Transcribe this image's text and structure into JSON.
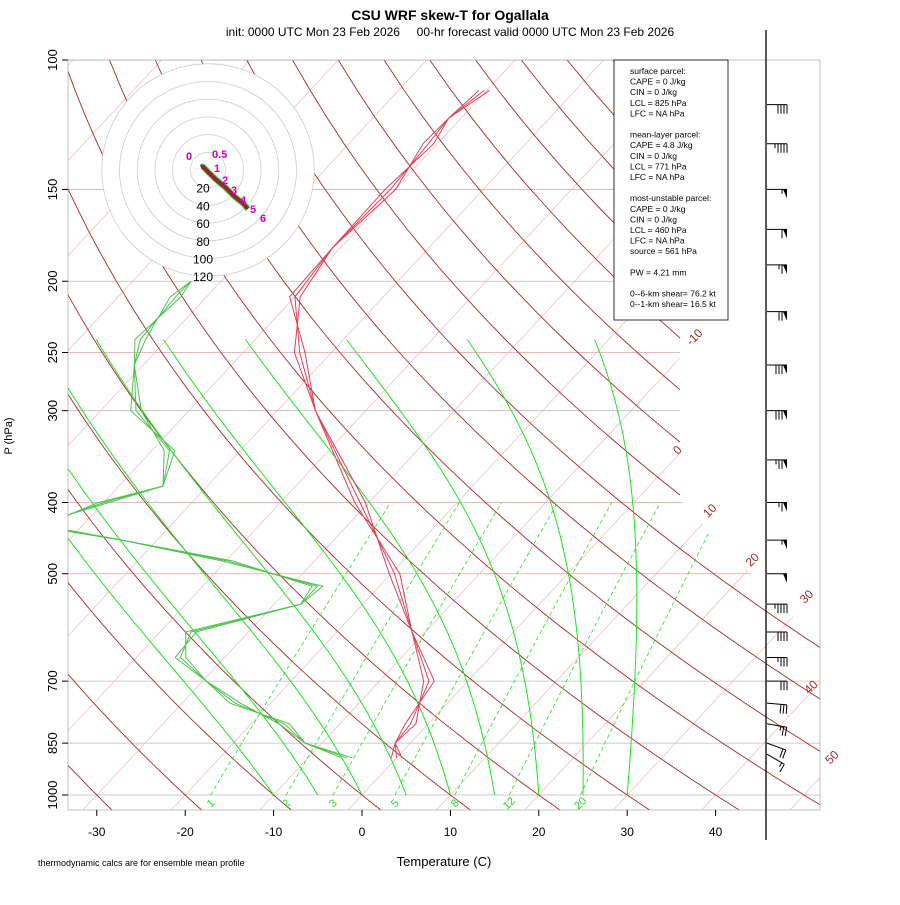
{
  "chart_data": {
    "type": "line",
    "title": "CSU WRF skew-T for Ogallala",
    "subtitle": "init: 0000 UTC Mon 23 Feb 2026     00-hr forecast valid 0000 UTC Mon 23 Feb 2026",
    "xlabel": "Temperature (C)",
    "ylabel": "P (hPa)",
    "footnote": "thermodynamic calcs are for ensemble mean profile",
    "xlim": [
      -33,
      45
    ],
    "ylim": [
      1000,
      100
    ],
    "x_ticks": [
      "-30",
      "-20",
      "-10",
      "0",
      "10",
      "20",
      "30",
      "40"
    ],
    "x_tick_values": [
      -30,
      -20,
      -10,
      0,
      10,
      20,
      30,
      40
    ],
    "y_ticks": [
      "100",
      "150",
      "200",
      "250",
      "300",
      "400",
      "500",
      "700",
      "850",
      "1000"
    ],
    "y_tick_values": [
      100,
      150,
      200,
      250,
      300,
      400,
      500,
      700,
      850,
      1000
    ],
    "isotherm_labels": [
      {
        "text": "-10",
        "T": -10,
        "p": 245
      },
      {
        "text": "0",
        "T": 0,
        "p": 345
      },
      {
        "text": "10",
        "T": 10,
        "p": 420
      },
      {
        "text": "20",
        "T": 20,
        "p": 490
      },
      {
        "text": "30",
        "T": 30,
        "p": 550
      },
      {
        "text": "40",
        "T": 40,
        "p": 730
      },
      {
        "text": "50",
        "T": 50,
        "p": 910
      }
    ],
    "mixing_ratio_labels": [
      "1",
      "2",
      "3",
      "5",
      "8",
      "12",
      "20"
    ],
    "mixing_ratio_values": [
      1,
      2,
      3,
      5,
      8,
      12,
      20
    ],
    "series": [
      {
        "name": "temperature",
        "color": "#e0425a",
        "p": [
          890,
          850,
          800,
          700,
          600,
          500,
          400,
          300,
          250,
          210,
          180,
          150,
          130,
          120,
          110
        ],
        "T": [
          0.0,
          -1.7,
          -2.0,
          -4.4,
          -11.5,
          -19.6,
          -31.0,
          -45.7,
          -53.6,
          -60.0,
          -60.9,
          -60.5,
          -61.0,
          -61.4,
          -60.3
        ]
      },
      {
        "name": "dewpoint",
        "color": "#4ec24e",
        "p": [
          890,
          850,
          800,
          750,
          700,
          650,
          600,
          550,
          520,
          480,
          450,
          430,
          400,
          380,
          340,
          300,
          260,
          240,
          210,
          200
        ],
        "T": [
          -5.6,
          -11.9,
          -16.3,
          -24.0,
          -29.6,
          -35.0,
          -36.5,
          -27.0,
          -27.0,
          -40.0,
          -54.0,
          -65.0,
          -60.0,
          -55.0,
          -58.0,
          -66.0,
          -71.0,
          -73.0,
          -73.5,
          -73.4
        ]
      }
    ],
    "winds": [
      {
        "p": 880,
        "dir": 300,
        "kt": 15
      },
      {
        "p": 850,
        "dir": 290,
        "kt": 20
      },
      {
        "p": 800,
        "dir": 280,
        "kt": 25
      },
      {
        "p": 750,
        "dir": 275,
        "kt": 30
      },
      {
        "p": 700,
        "dir": 270,
        "kt": 30
      },
      {
        "p": 650,
        "dir": 270,
        "kt": 35
      },
      {
        "p": 600,
        "dir": 270,
        "kt": 40
      },
      {
        "p": 550,
        "dir": 270,
        "kt": 45
      },
      {
        "p": 500,
        "dir": 270,
        "kt": 50
      },
      {
        "p": 450,
        "dir": 270,
        "kt": 55
      },
      {
        "p": 400,
        "dir": 270,
        "kt": 65
      },
      {
        "p": 350,
        "dir": 270,
        "kt": 75
      },
      {
        "p": 300,
        "dir": 270,
        "kt": 80
      },
      {
        "p": 260,
        "dir": 270,
        "kt": 80
      },
      {
        "p": 220,
        "dir": 270,
        "kt": 70
      },
      {
        "p": 190,
        "dir": 270,
        "kt": 65
      },
      {
        "p": 170,
        "dir": 270,
        "kt": 60
      },
      {
        "p": 150,
        "dir": 270,
        "kt": 55
      },
      {
        "p": 130,
        "dir": 270,
        "kt": 45
      },
      {
        "p": 115,
        "dir": 270,
        "kt": 40
      }
    ],
    "hodograph": {
      "ring_labels": [
        "20",
        "40",
        "60",
        "80",
        "100",
        "120"
      ],
      "ring_values": [
        20,
        40,
        60,
        80,
        100,
        120
      ],
      "height_labels": [
        "0",
        "0.5",
        "1",
        "2",
        "3",
        "4",
        "5",
        "6"
      ],
      "u": [
        -8,
        -6,
        -4,
        0,
        8,
        20,
        30,
        40,
        45
      ],
      "v": [
        3,
        4,
        2,
        -2,
        -10,
        -20,
        -30,
        -38,
        -44
      ]
    },
    "parcel_info": [
      "surface parcel:",
      "CAPE = 0 J/kg",
      "CIN = 0 J/kg",
      "LCL = 825 hPa",
      "LFC = NA hPa",
      "",
      "mean-layer parcel:",
      "CAPE = 4.8 J/kg",
      "CIN = 0 J/kg",
      "LCL = 771 hPa",
      "LFC = NA hPa",
      "",
      "most-unstable parcel:",
      "CAPE = 0 J/kg",
      "CIN = 0 J/kg",
      "LCL = 460 hPa",
      "LFC = NA hPa",
      "source = 561 hPa",
      "",
      "PW =  4.21 mm",
      "",
      "0--6-km shear= 76.2 kt",
      "0--1-km shear= 16.5 kt"
    ]
  }
}
